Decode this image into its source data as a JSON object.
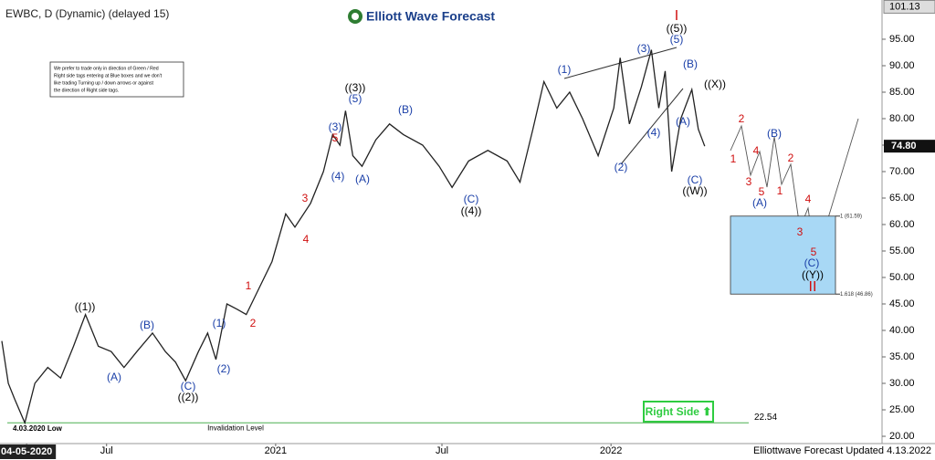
{
  "chart_data": {
    "type": "line",
    "title": "EWBC, D (Dynamic) (delayed 15)",
    "logo": "Elliott Wave Forecast",
    "note": [
      "We prefer to trade only in direction of Green / Red",
      "Right side tags entering at Blue boxes and we don't",
      "like trading Turning up / down arrows or against",
      "the direction of Right side tags."
    ],
    "footer": "Elliottwave Forecast Updated 4.13.2022",
    "right_side": "Right Side ⬆",
    "low_label": "4.03.2020 Low",
    "invalidation": {
      "text": "Invalidation Level",
      "value": 22.54,
      "label": "22.54",
      "color": "#4caf50"
    },
    "last_price": {
      "value": 74.8,
      "label": "74.80"
    },
    "high_price": {
      "value": 101.13,
      "label": "101.13"
    },
    "target_zone": {
      "color": "#a8d8f5",
      "top": {
        "value": 61.59,
        "label": "1 (61.59)"
      },
      "bottom": {
        "value": 46.86,
        "label": "1.618 (46.86)"
      }
    },
    "xlim": [
      "2020-03-07",
      "2022-10-23"
    ],
    "xticks": [
      {
        "value": "2020-04-05",
        "label": "04-05-2020"
      },
      {
        "value": "2020-07-01",
        "label": "Jul"
      },
      {
        "value": "2021-01-01",
        "label": "2021"
      },
      {
        "value": "2021-07-01",
        "label": "Jul"
      },
      {
        "value": "2022-01-01",
        "label": "2022"
      }
    ],
    "ylim": [
      18.97,
      102.41
    ],
    "yticks": [
      {
        "value": 20,
        "label": "20.00"
      },
      {
        "value": 25,
        "label": "25.00"
      },
      {
        "value": 30,
        "label": "30.00"
      },
      {
        "value": 35,
        "label": "35.00"
      },
      {
        "value": 40,
        "label": "40.00"
      },
      {
        "value": 45,
        "label": "45.00"
      },
      {
        "value": 50,
        "label": "50.00"
      },
      {
        "value": 55,
        "label": "55.00"
      },
      {
        "value": 60,
        "label": "60.00"
      },
      {
        "value": 65,
        "label": "65.00"
      },
      {
        "value": 70,
        "label": "70.00"
      },
      {
        "value": 75,
        "label": "75.00"
      },
      {
        "value": 80,
        "label": "80.00"
      },
      {
        "value": 85,
        "label": "85.00"
      },
      {
        "value": 90,
        "label": "90.00"
      },
      {
        "value": 95,
        "label": "95.00"
      }
    ],
    "series": [
      {
        "color": "#222222",
        "x": [
          "2020-03-09",
          "2020-03-16",
          "2020-03-23",
          "2020-04-03",
          "2020-04-14",
          "2020-04-28",
          "2020-05-12",
          "2020-05-26",
          "2020-06-08",
          "2020-06-22",
          "2020-07-06",
          "2020-07-20",
          "2020-08-03",
          "2020-08-20",
          "2020-09-03",
          "2020-09-14",
          "2020-09-25",
          "2020-10-09",
          "2020-10-19",
          "2020-10-28",
          "2020-11-09",
          "2020-11-20",
          "2020-11-30",
          "2020-12-14",
          "2020-12-28",
          "2021-01-12",
          "2021-01-22",
          "2021-02-08",
          "2021-02-22",
          "2021-03-04",
          "2021-03-12",
          "2021-03-18",
          "2021-03-26",
          "2021-04-05",
          "2021-04-20",
          "2021-05-05",
          "2021-05-20",
          "2021-06-10",
          "2021-06-28",
          "2021-07-12",
          "2021-07-30",
          "2021-08-20",
          "2021-09-10",
          "2021-09-24",
          "2021-10-08",
          "2021-10-20",
          "2021-11-03",
          "2021-11-17",
          "2021-12-01",
          "2021-12-18",
          "2022-01-04",
          "2022-01-11",
          "2022-01-21",
          "2022-02-03",
          "2022-02-14",
          "2022-02-22",
          "2022-03-01",
          "2022-03-08",
          "2022-03-18",
          "2022-03-30",
          "2022-04-06",
          "2022-04-13"
        ],
        "values": [
          38,
          30,
          27,
          22.54,
          30,
          33,
          31,
          37,
          43,
          37,
          36,
          33,
          36,
          39.5,
          36,
          34,
          30.5,
          36,
          39.5,
          34.5,
          45,
          44,
          43,
          48,
          53,
          62,
          59.5,
          64,
          70,
          77,
          75,
          81.5,
          73,
          71,
          76,
          79,
          77,
          75,
          71,
          67,
          72,
          74,
          72,
          68,
          78,
          87,
          82,
          85,
          80,
          73,
          82,
          91.5,
          79,
          86,
          93,
          82,
          89,
          70,
          80,
          85.5,
          78,
          74.8
        ]
      }
    ],
    "annotations": [
      {
        "text": "((1))",
        "color": "#000"
      },
      {
        "text": "(A)",
        "color": "#1a3fa8"
      },
      {
        "text": "(B)",
        "color": "#1a3fa8"
      },
      {
        "text": "(C)",
        "color": "#1a3fa8"
      },
      {
        "text": "((2))",
        "color": "#000"
      },
      {
        "text": "(1)",
        "color": "#1a3fa8"
      },
      {
        "text": "(2)",
        "color": "#1a3fa8"
      },
      {
        "text": "1",
        "color": "#d01010"
      },
      {
        "text": "2",
        "color": "#d01010"
      },
      {
        "text": "3",
        "color": "#d01010"
      },
      {
        "text": "4",
        "color": "#d01010"
      },
      {
        "text": "(3)",
        "color": "#1a3fa8"
      },
      {
        "text": "5",
        "color": "#d01010"
      },
      {
        "text": "(4)",
        "color": "#1a3fa8"
      },
      {
        "text": "((3))",
        "color": "#000"
      },
      {
        "text": "(5)",
        "color": "#1a3fa8"
      },
      {
        "text": "(A)",
        "color": "#1a3fa8"
      },
      {
        "text": "(B)",
        "color": "#1a3fa8"
      },
      {
        "text": "(C)",
        "color": "#1a3fa8"
      },
      {
        "text": "((4))",
        "color": "#000"
      },
      {
        "text": "(1)",
        "color": "#1a3fa8"
      },
      {
        "text": "(2)",
        "color": "#1a3fa8"
      },
      {
        "text": "(3)",
        "color": "#1a3fa8"
      },
      {
        "text": "(4)",
        "color": "#1a3fa8"
      },
      {
        "text": "I",
        "color": "#d01010"
      },
      {
        "text": "((5))",
        "color": "#000"
      },
      {
        "text": "(5)",
        "color": "#1a3fa8"
      },
      {
        "text": "(B)",
        "color": "#1a3fa8"
      },
      {
        "text": "(A)",
        "color": "#1a3fa8"
      },
      {
        "text": "(C)",
        "color": "#1a3fa8"
      },
      {
        "text": "((W))",
        "color": "#000"
      },
      {
        "text": "((X))",
        "color": "#000"
      },
      {
        "text": "2",
        "color": "#d01010"
      },
      {
        "text": "1",
        "color": "#d01010"
      },
      {
        "text": "4",
        "color": "#d01010"
      },
      {
        "text": "3",
        "color": "#d01010"
      },
      {
        "text": "(B)",
        "color": "#1a3fa8"
      },
      {
        "text": "5",
        "color": "#d01010"
      },
      {
        "text": "(A)",
        "color": "#1a3fa8"
      },
      {
        "text": "2",
        "color": "#d01010"
      },
      {
        "text": "1",
        "color": "#d01010"
      },
      {
        "text": "4",
        "color": "#d01010"
      },
      {
        "text": "3",
        "color": "#d01010"
      },
      {
        "text": "5",
        "color": "#d01010"
      },
      {
        "text": "(C)",
        "color": "#1a3fa8"
      },
      {
        "text": "((Y))",
        "color": "#000"
      },
      {
        "text": "II",
        "color": "#d01010"
      }
    ]
  }
}
